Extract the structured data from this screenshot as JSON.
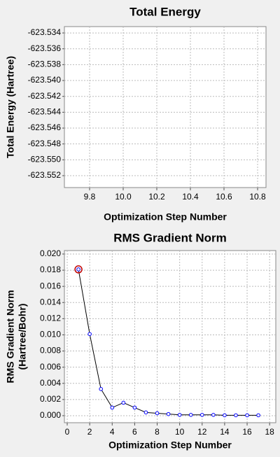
{
  "chart_data": [
    {
      "type": "line",
      "title": "Total Energy",
      "xlabel": "Optimization Step Number",
      "ylabel": [
        "Total Energy (Hartree)"
      ],
      "x": [],
      "series": [
        {
          "color": "#0000ff",
          "values": []
        }
      ],
      "xlim": [
        9.65,
        10.85
      ],
      "xticks": [
        9.8,
        {
          "value": 10,
          "label": "10.0"
        },
        10.2,
        10.4,
        10.6,
        10.8
      ],
      "ylim": [
        -623.5535,
        -623.5332
      ],
      "yticks": [
        -623.534,
        -623.536,
        -623.538,
        {
          "value": -623.54,
          "label": "-623.540"
        },
        -623.542,
        -623.544,
        -623.546,
        -623.548,
        {
          "value": -623.55,
          "label": "-623.550"
        },
        -623.552
      ],
      "grid": true
    },
    {
      "type": "line",
      "title": "RMS Gradient Norm",
      "xlabel": "Optimization Step Number",
      "ylabel": [
        "RMS Gradient Norm",
        "(Hartree/Bohr)"
      ],
      "x": [
        1,
        2,
        3,
        4,
        5,
        6,
        7,
        8,
        9,
        10,
        11,
        12,
        13,
        14,
        15,
        16,
        17
      ],
      "series": [
        {
          "color": "#0000ff",
          "values": [
            0.0181,
            0.0101,
            0.0033,
            0.001,
            0.0016,
            0.001,
            0.0004,
            0.0003,
            0.0002,
            0.0001,
            0.0001,
            0.0001,
            0.0001,
            5e-05,
            5e-05,
            5e-05,
            5e-05
          ]
        }
      ],
      "selected_point": 0,
      "selected_color": "#c00000",
      "line_color": "#000000",
      "xlim": [
        -0.25,
        18.55
      ],
      "xticks": [
        0,
        2,
        4,
        6,
        8,
        10,
        12,
        14,
        16,
        18
      ],
      "ylim": [
        -0.00087,
        0.02043
      ],
      "yticks": [
        {
          "value": 0,
          "label": "0.000"
        },
        0.002,
        0.004,
        0.006,
        0.008,
        {
          "value": 0.01,
          "label": "0.010"
        },
        0.012,
        0.014,
        0.016,
        0.018,
        {
          "value": 0.02,
          "label": "0.020"
        }
      ],
      "grid": true
    }
  ]
}
